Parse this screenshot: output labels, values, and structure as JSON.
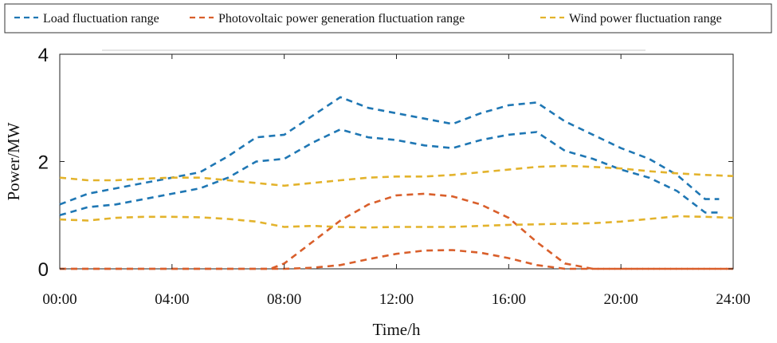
{
  "chart_data": {
    "type": "line",
    "xlabel": "Time/h",
    "ylabel": "Power/MW",
    "xlim": [
      0,
      24
    ],
    "ylim": [
      0,
      4
    ],
    "xticks": [
      0,
      4,
      8,
      12,
      16,
      20,
      24
    ],
    "xtick_labels": [
      "00:00",
      "04:00",
      "08:00",
      "12:00",
      "16:00",
      "20:00",
      "24:00"
    ],
    "yticks": [
      0,
      2,
      4
    ],
    "ytick_labels": [
      "0",
      "2",
      "4"
    ],
    "grid": false,
    "legend_position": "top",
    "legend": [
      {
        "label": "Load fluctuation range",
        "color": "#1f77b4"
      },
      {
        "label": "Photovoltaic power generation fluctuation range",
        "color": "#d95f2b"
      },
      {
        "label": "Wind power fluctuation range",
        "color": "#e3b32c"
      }
    ],
    "line_style": "dashed",
    "series": [
      {
        "name": "Load fluctuation range",
        "bound": "upper",
        "color": "#1f77b4",
        "x": [
          0,
          1,
          2,
          3,
          4,
          5,
          6,
          7,
          8,
          9,
          10,
          11,
          12,
          13,
          14,
          15,
          16,
          17,
          18,
          19,
          20,
          21,
          22,
          23,
          23.5
        ],
        "y": [
          1.2,
          1.4,
          1.5,
          1.6,
          1.7,
          1.8,
          2.1,
          2.45,
          2.5,
          2.85,
          3.2,
          3.0,
          2.9,
          2.8,
          2.7,
          2.9,
          3.05,
          3.1,
          2.75,
          2.5,
          2.25,
          2.05,
          1.75,
          1.3,
          1.3
        ]
      },
      {
        "name": "Load fluctuation range",
        "bound": "lower",
        "color": "#1f77b4",
        "x": [
          0,
          1,
          2,
          3,
          4,
          5,
          6,
          7,
          8,
          9,
          10,
          11,
          12,
          13,
          14,
          15,
          16,
          17,
          18,
          19,
          20,
          21,
          22,
          23,
          23.5
        ],
        "y": [
          1.0,
          1.15,
          1.2,
          1.3,
          1.4,
          1.5,
          1.7,
          2.0,
          2.05,
          2.35,
          2.6,
          2.45,
          2.4,
          2.3,
          2.25,
          2.4,
          2.5,
          2.55,
          2.2,
          2.05,
          1.85,
          1.7,
          1.45,
          1.05,
          1.05
        ]
      },
      {
        "name": "Photovoltaic power generation fluctuation range",
        "bound": "upper",
        "color": "#d95f2b",
        "x": [
          0,
          1,
          2,
          3,
          4,
          5,
          6,
          7,
          7.5,
          8,
          9,
          10,
          11,
          12,
          13,
          14,
          15,
          16,
          17,
          18,
          19,
          20,
          21,
          22,
          23,
          24
        ],
        "y": [
          0,
          0,
          0,
          0,
          0,
          0,
          0,
          0,
          0,
          0.1,
          0.5,
          0.9,
          1.2,
          1.37,
          1.4,
          1.35,
          1.2,
          0.95,
          0.5,
          0.1,
          0,
          0,
          0,
          0,
          0,
          0
        ]
      },
      {
        "name": "Photovoltaic power generation fluctuation range",
        "bound": "lower",
        "color": "#d95f2b",
        "x": [
          0,
          1,
          2,
          3,
          4,
          5,
          6,
          7,
          8,
          9,
          10,
          11,
          12,
          13,
          14,
          15,
          16,
          17,
          18,
          19,
          20,
          21,
          22,
          23,
          24
        ],
        "y": [
          0,
          0,
          0,
          0,
          0,
          0,
          0,
          0,
          0,
          0.02,
          0.07,
          0.18,
          0.28,
          0.34,
          0.35,
          0.3,
          0.2,
          0.07,
          0,
          0,
          0,
          0,
          0,
          0,
          0
        ]
      },
      {
        "name": "Wind power fluctuation range",
        "bound": "upper",
        "color": "#e3b32c",
        "x": [
          0,
          1,
          2,
          3,
          4,
          5,
          6,
          7,
          8,
          9,
          10,
          11,
          12,
          13,
          14,
          15,
          16,
          17,
          18,
          19,
          20,
          21,
          22,
          23,
          24
        ],
        "y": [
          1.7,
          1.65,
          1.65,
          1.68,
          1.7,
          1.7,
          1.65,
          1.6,
          1.55,
          1.6,
          1.65,
          1.7,
          1.72,
          1.72,
          1.75,
          1.8,
          1.85,
          1.9,
          1.92,
          1.9,
          1.87,
          1.82,
          1.78,
          1.75,
          1.73
        ]
      },
      {
        "name": "Wind power fluctuation range",
        "bound": "lower",
        "color": "#e3b32c",
        "x": [
          0,
          1,
          2,
          3,
          4,
          5,
          6,
          7,
          8,
          9,
          10,
          11,
          12,
          13,
          14,
          15,
          16,
          17,
          18,
          19,
          20,
          21,
          22,
          23,
          24
        ],
        "y": [
          0.92,
          0.9,
          0.95,
          0.97,
          0.97,
          0.96,
          0.93,
          0.88,
          0.78,
          0.8,
          0.78,
          0.77,
          0.78,
          0.78,
          0.78,
          0.8,
          0.82,
          0.83,
          0.84,
          0.85,
          0.88,
          0.93,
          0.98,
          0.97,
          0.95
        ]
      }
    ]
  }
}
